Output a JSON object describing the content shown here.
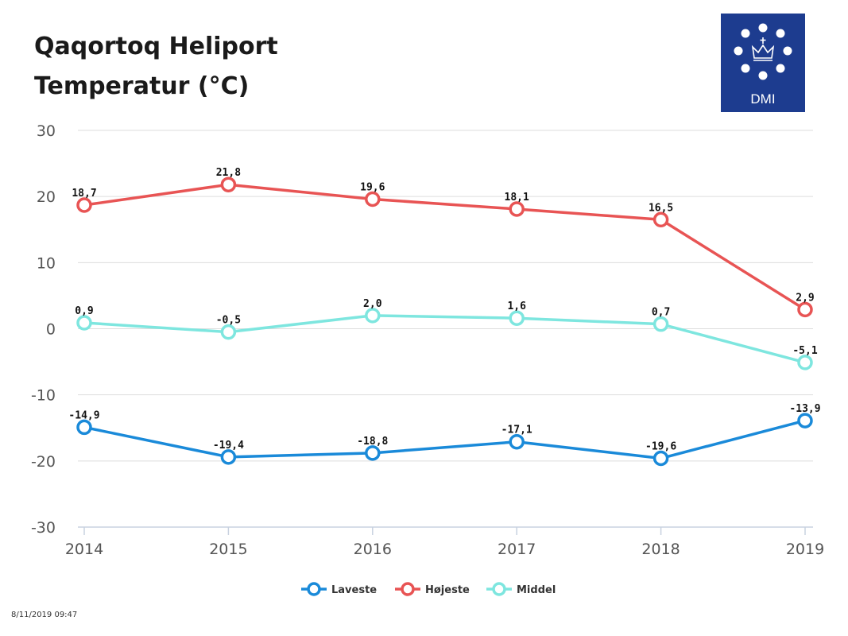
{
  "title_lines": [
    "Qaqortoq Heliport",
    "Temperatur (°C)"
  ],
  "logo": {
    "text": "DMI",
    "icon": "crown-icon"
  },
  "timestamp": "8/11/2019 09:47",
  "colors": {
    "laveste": "#1a8ad9",
    "hojeste": "#e85454",
    "middel": "#7ee6df",
    "grid": "#dddddd",
    "axis_text": "#555555"
  },
  "chart_data": {
    "type": "line",
    "x": [
      "2014",
      "2015",
      "2016",
      "2017",
      "2018",
      "2019"
    ],
    "ylim": [
      -30,
      30
    ],
    "yticks": [
      30,
      20,
      10,
      0,
      -10,
      -20,
      -30
    ],
    "ytick_labels": [
      "30",
      "20",
      "10",
      "0",
      "-10",
      "-20",
      "-30"
    ],
    "grid": true,
    "legend_position": "bottom-center",
    "series": [
      {
        "name": "Laveste",
        "color": "#1a8ad9",
        "values": [
          -14.9,
          -19.4,
          -18.8,
          -17.1,
          -19.6,
          -13.9
        ],
        "labels": [
          "-14,9",
          "-19,4",
          "-18,8",
          "-17,1",
          "-19,6",
          "-13,9"
        ]
      },
      {
        "name": "Højeste",
        "color": "#e85454",
        "values": [
          18.7,
          21.8,
          19.6,
          18.1,
          16.5,
          2.9
        ],
        "labels": [
          "18,7",
          "21,8",
          "19,6",
          "18,1",
          "16,5",
          "2,9"
        ]
      },
      {
        "name": "Middel",
        "color": "#7ee6df",
        "values": [
          0.9,
          -0.5,
          2.0,
          1.6,
          0.7,
          -5.1
        ],
        "labels": [
          "0,9",
          "-0,5",
          "2,0",
          "1,6",
          "0,7",
          "-5,1"
        ]
      }
    ]
  }
}
